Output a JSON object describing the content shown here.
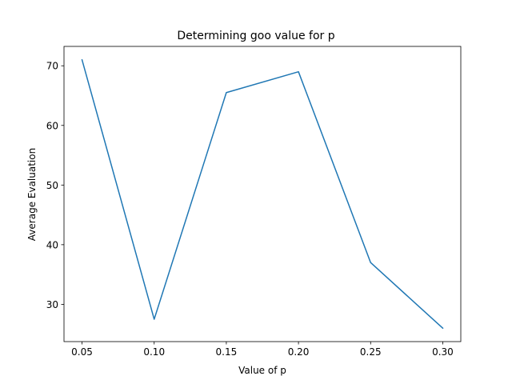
{
  "chart_data": {
    "type": "line",
    "title": "Determining goo value for p",
    "xlabel": "Value of p",
    "ylabel": "Average Evaluation",
    "x": [
      0.05,
      0.1,
      0.15,
      0.2,
      0.25,
      0.3
    ],
    "x_tick_labels": [
      "0.05",
      "0.10",
      "0.15",
      "0.20",
      "0.25",
      "0.30"
    ],
    "y_ticks": [
      30,
      40,
      50,
      60,
      70
    ],
    "y_tick_labels": [
      "30",
      "40",
      "50",
      "60",
      "70"
    ],
    "xlim": [
      0.0375,
      0.3125
    ],
    "ylim": [
      23.75,
      73.25
    ],
    "series": [
      {
        "values": [
          71.0,
          27.5,
          65.5,
          69.0,
          37.0,
          26.0
        ],
        "color": "#1f77b4"
      }
    ],
    "grid": false,
    "legend": false
  }
}
